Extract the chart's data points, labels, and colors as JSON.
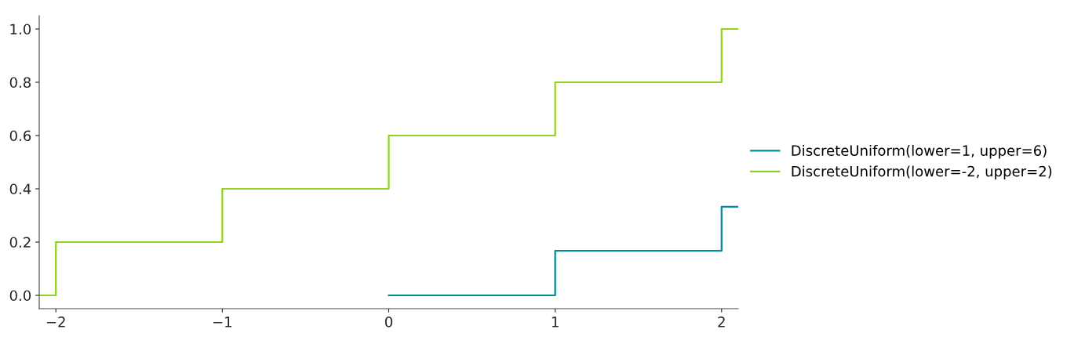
{
  "chart_data": {
    "type": "step",
    "series": [
      {
        "name": "DiscreteUniform(lower=1, upper=6)",
        "color": "#008b94",
        "x": [
          0,
          1,
          2,
          2.1
        ],
        "values": [
          0,
          0.167,
          0.333,
          0.333
        ]
      },
      {
        "name": "DiscreteUniform(lower=-2, upper=2)",
        "color": "#8fd41c",
        "x": [
          -2.1,
          -2,
          -1,
          0,
          1,
          2,
          2.1
        ],
        "values": [
          0,
          0.2,
          0.4,
          0.6,
          0.8,
          1.0,
          1.0
        ]
      }
    ],
    "xlim": [
      -2.1,
      2.1
    ],
    "xticks": [
      {
        "value": -2,
        "label": "−2"
      },
      {
        "value": -1,
        "label": "−1"
      },
      0,
      1,
      2
    ],
    "ylim": [
      -0.05,
      1.05
    ],
    "yticks": [
      {
        "value": 0,
        "label": "0.0"
      },
      {
        "value": 0.2,
        "label": "0.2"
      },
      {
        "value": 0.4,
        "label": "0.4"
      },
      {
        "value": 0.6,
        "label": "0.6"
      },
      {
        "value": 0.8,
        "label": "0.8"
      },
      {
        "value": 1.0,
        "label": "1.0"
      }
    ],
    "legend": "right",
    "grid": false
  }
}
